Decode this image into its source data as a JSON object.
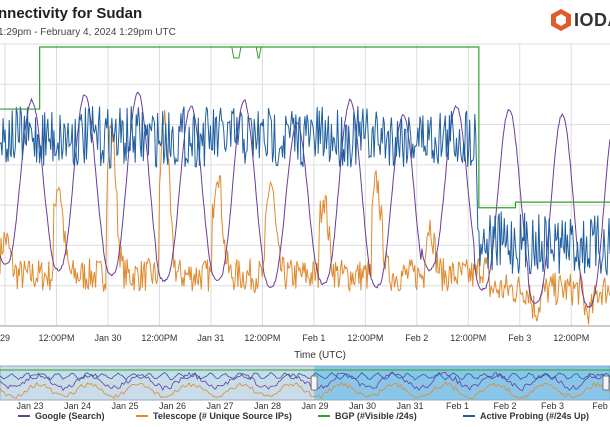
{
  "header": {
    "title": "nnectivity for Sudan",
    "subtitle": "1:29pm - February 4, 2024 1:29pm UTC",
    "logo_text": "IODA"
  },
  "colors": {
    "google": "#6a3d9a",
    "telescope": "#e08a2e",
    "bgp": "#33a02c",
    "probing": "#1f5fa0",
    "grid": "#dddddd",
    "nav_fill": "#c9dce9",
    "nav_sel": "#56b4e9"
  },
  "chart_data": [
    {
      "type": "line",
      "xlabel": "Time (UTC)",
      "ylabel": "",
      "x_tick_labels": [
        "29",
        "12:00PM",
        "Jan 30",
        "12:00PM",
        "Jan 31",
        "12:00PM",
        "Feb 1",
        "12:00PM",
        "Feb 2",
        "12:00PM",
        "Feb 3",
        "12:00PM"
      ],
      "grid": true,
      "legend_position": "bottom",
      "series": [
        {
          "name": "Google (Search)",
          "key": "google",
          "profile": "diurnal",
          "phase": 0.05,
          "day_hi": [
            0.2,
            0.18,
            0.17,
            0.22,
            0.2,
            0.28,
            0.2,
            0.25,
            0.22,
            0.23,
            0.25
          ],
          "day_lo": [
            0.78,
            0.8,
            0.82,
            0.84,
            0.84,
            0.86,
            0.85,
            0.86,
            0.8,
            0.87,
            0.92,
            0.93
          ]
        },
        {
          "name": "Telescope (# Unique Source IPs)",
          "key": "telescope",
          "profile": "spiky",
          "level": 0.88,
          "peaks": [
            0.75,
            0.55,
            0.35,
            0.32,
            0.5,
            0.55,
            0.6,
            0.55,
            0.7,
            0.85,
            0.95,
            0.97
          ]
        },
        {
          "name": "BGP (#Visible /24s)",
          "key": "bgp",
          "profile": "step",
          "levels": [
            [
              0,
              0.22
            ],
            [
              0.065,
              0.0
            ],
            [
              0.78,
              0.0
            ],
            [
              0.785,
              0.57
            ],
            [
              0.84,
              0.57
            ],
            [
              0.845,
              0.55
            ],
            [
              1,
              0.55
            ]
          ]
        },
        {
          "name": "Active Probing (#/24s Up)",
          "key": "probing",
          "profile": "noisy",
          "levels": [
            [
              0,
              0.33
            ],
            [
              0.78,
              0.33
            ],
            [
              0.785,
              0.7
            ],
            [
              1,
              0.72
            ]
          ]
        }
      ]
    },
    {
      "type": "area",
      "x_tick_labels": [
        "Jan 23",
        "Jan 24",
        "Jan 25",
        "Jan 26",
        "Jan 27",
        "Jan 28",
        "Jan 29",
        "Jan 30",
        "Jan 31",
        "Feb 1",
        "Feb 2",
        "Feb 3",
        "Feb"
      ],
      "selection": [
        0.515,
        1.0
      ]
    }
  ],
  "legend": [
    {
      "label": "Google (Search)",
      "key": "google"
    },
    {
      "label": "Telescope (# Unique Source IPs)",
      "key": "telescope"
    },
    {
      "label": "BGP (#Visible /24s)",
      "key": "bgp"
    },
    {
      "label": "Active Probing (#/24s Up)",
      "key": "probing"
    }
  ]
}
